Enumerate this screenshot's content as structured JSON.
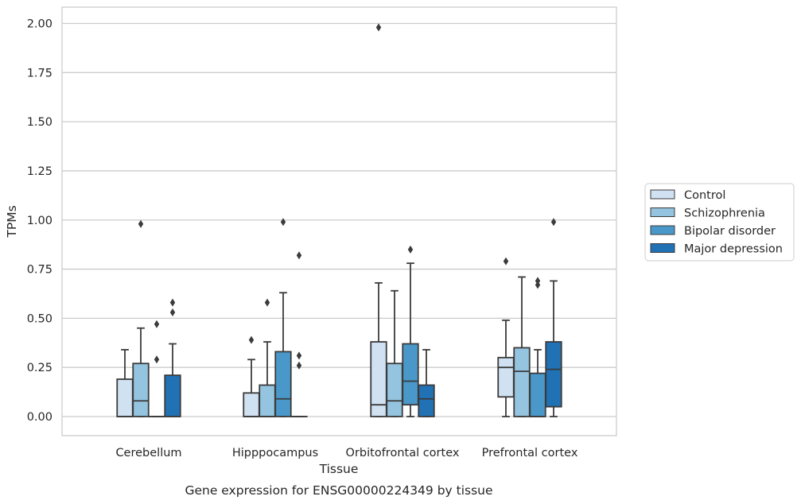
{
  "caption": "Gene expression for ENSG00000224349 by tissue",
  "chart_data": {
    "type": "box",
    "title": "",
    "xlabel": "Tissue",
    "ylabel": "TPMs",
    "ylim": [
      -0.1,
      2.08
    ],
    "yticks": [
      0.0,
      0.25,
      0.5,
      0.75,
      1.0,
      1.25,
      1.5,
      1.75,
      2.0
    ],
    "ytick_labels": [
      "0.00",
      "0.25",
      "0.50",
      "0.75",
      "1.00",
      "1.25",
      "1.50",
      "1.75",
      "2.00"
    ],
    "categories": [
      "Cerebellum",
      "Hipppocampus",
      "Orbitofrontal cortex",
      "Prefrontal cortex"
    ],
    "grid": "horizontal",
    "legend_position": "right",
    "series": [
      {
        "name": "Control",
        "color": "#d0e1f2",
        "boxes": [
          {
            "whislo": 0.0,
            "q1": 0.0,
            "med": 0.0,
            "q3": 0.19,
            "whishi": 0.34,
            "fliers": []
          },
          {
            "whislo": 0.0,
            "q1": 0.0,
            "med": 0.0,
            "q3": 0.12,
            "whishi": 0.29,
            "fliers": [
              0.39
            ]
          },
          {
            "whislo": 0.0,
            "q1": 0.0,
            "med": 0.06,
            "q3": 0.38,
            "whishi": 0.68,
            "fliers": [
              1.98
            ]
          },
          {
            "whislo": 0.0,
            "q1": 0.1,
            "med": 0.25,
            "q3": 0.3,
            "whishi": 0.49,
            "fliers": [
              0.79
            ]
          }
        ]
      },
      {
        "name": "Schizophrenia",
        "color": "#94c4df",
        "boxes": [
          {
            "whislo": 0.0,
            "q1": 0.0,
            "med": 0.08,
            "q3": 0.27,
            "whishi": 0.45,
            "fliers": [
              0.98
            ]
          },
          {
            "whislo": 0.0,
            "q1": 0.0,
            "med": 0.0,
            "q3": 0.16,
            "whishi": 0.38,
            "fliers": [
              0.58
            ]
          },
          {
            "whislo": 0.0,
            "q1": 0.0,
            "med": 0.08,
            "q3": 0.27,
            "whishi": 0.64,
            "fliers": []
          },
          {
            "whislo": 0.0,
            "q1": 0.0,
            "med": 0.23,
            "q3": 0.35,
            "whishi": 0.71,
            "fliers": []
          }
        ]
      },
      {
        "name": "Bipolar disorder",
        "color": "#4a98c9",
        "boxes": [
          {
            "whislo": 0.0,
            "q1": 0.0,
            "med": 0.0,
            "q3": 0.0,
            "whishi": 0.0,
            "fliers": [
              0.29,
              0.47
            ]
          },
          {
            "whislo": 0.0,
            "q1": 0.0,
            "med": 0.09,
            "q3": 0.33,
            "whishi": 0.63,
            "fliers": [
              0.99
            ]
          },
          {
            "whislo": 0.0,
            "q1": 0.06,
            "med": 0.18,
            "q3": 0.37,
            "whishi": 0.78,
            "fliers": [
              0.85
            ]
          },
          {
            "whislo": 0.0,
            "q1": 0.0,
            "med": 0.0,
            "q3": 0.22,
            "whishi": 0.34,
            "fliers": [
              0.67,
              0.69
            ]
          }
        ]
      },
      {
        "name": "Major depression",
        "color": "#2171b5",
        "boxes": [
          {
            "whislo": 0.0,
            "q1": 0.0,
            "med": 0.0,
            "q3": 0.21,
            "whishi": 0.37,
            "fliers": [
              0.53,
              0.58
            ]
          },
          {
            "whislo": 0.0,
            "q1": 0.0,
            "med": 0.0,
            "q3": 0.0,
            "whishi": 0.0,
            "fliers": [
              0.26,
              0.31,
              0.82
            ]
          },
          {
            "whislo": 0.0,
            "q1": 0.0,
            "med": 0.09,
            "q3": 0.16,
            "whishi": 0.34,
            "fliers": []
          },
          {
            "whislo": 0.0,
            "q1": 0.05,
            "med": 0.24,
            "q3": 0.38,
            "whishi": 0.69,
            "fliers": [
              0.99
            ]
          }
        ]
      }
    ]
  }
}
